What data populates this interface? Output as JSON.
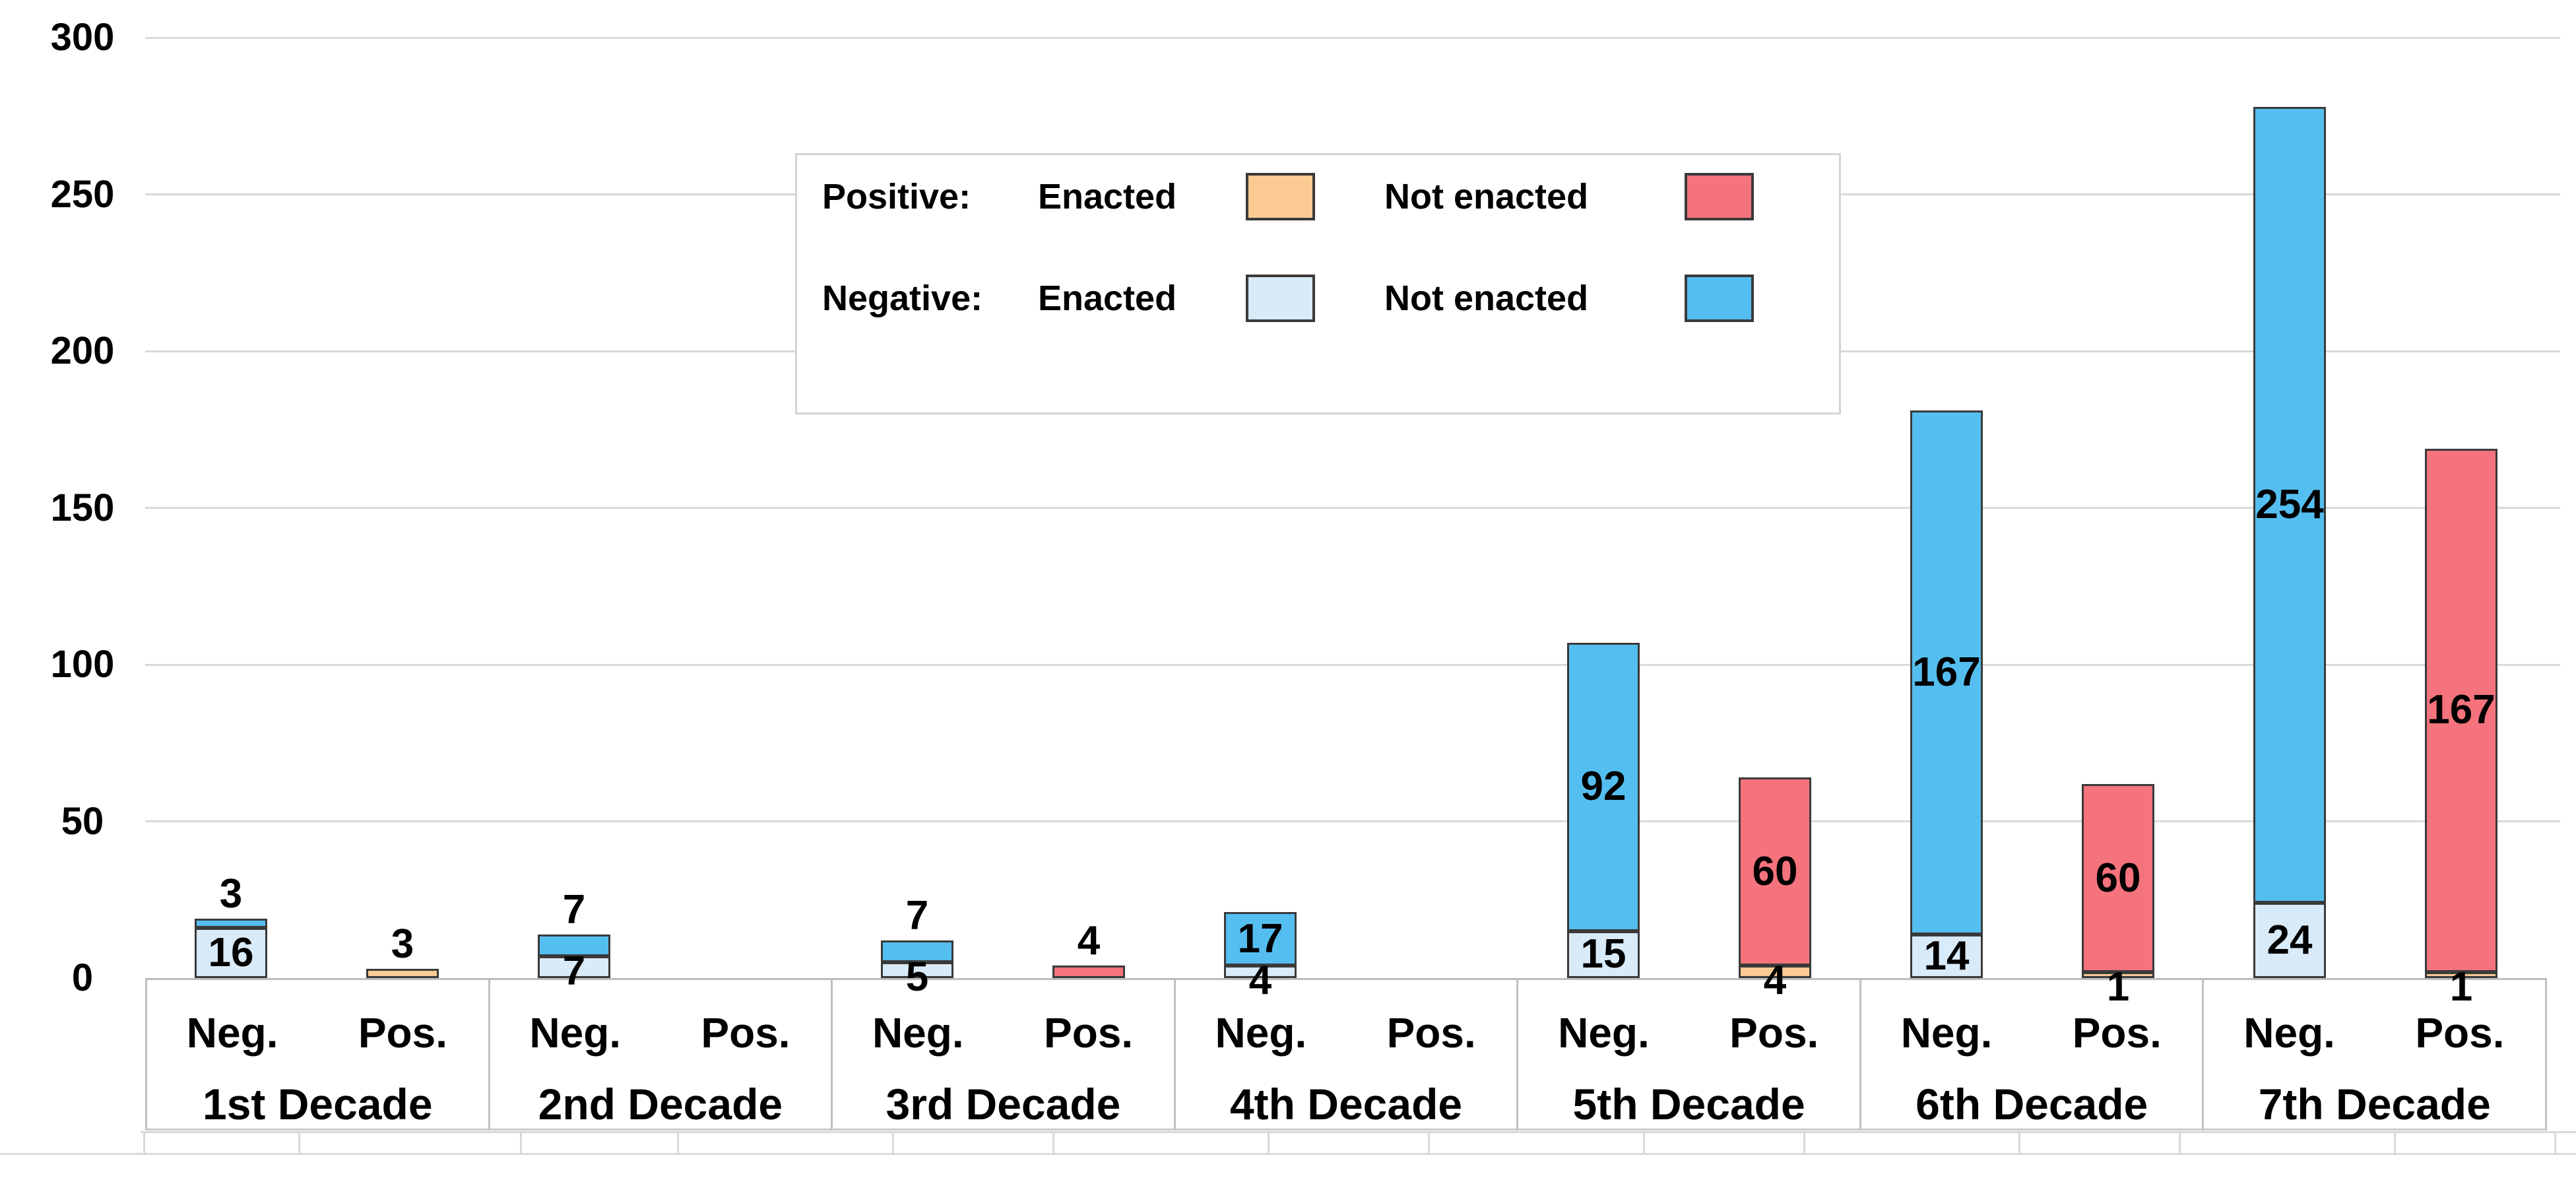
{
  "chart_data": {
    "type": "bar",
    "stacked": true,
    "title": "",
    "xlabel": "",
    "ylabel": "",
    "ylim": [
      0,
      300
    ],
    "yticks": [
      "0",
      "50",
      "100",
      "150",
      "200",
      "250",
      "300"
    ],
    "grid": "horizontal",
    "legend_position": "inside-top-center",
    "group_labels": [
      "Neg.",
      "Pos."
    ],
    "categories": [
      {
        "decade": "1st Decade",
        "neg": {
          "enacted": 16,
          "not_enacted": 3
        },
        "pos": {
          "enacted": 3,
          "not_enacted": 0
        }
      },
      {
        "decade": "2nd Decade",
        "neg": {
          "enacted": 7,
          "not_enacted": 7
        },
        "pos": {
          "enacted": 0,
          "not_enacted": 0
        }
      },
      {
        "decade": "3rd Decade",
        "neg": {
          "enacted": 5,
          "not_enacted": 7
        },
        "pos": {
          "enacted": 0,
          "not_enacted": 4
        }
      },
      {
        "decade": "4th Decade",
        "neg": {
          "enacted": 4,
          "not_enacted": 17
        },
        "pos": {
          "enacted": 0,
          "not_enacted": 0
        }
      },
      {
        "decade": "5th Decade",
        "neg": {
          "enacted": 15,
          "not_enacted": 92
        },
        "pos": {
          "enacted": 4,
          "not_enacted": 60
        }
      },
      {
        "decade": "6th Decade",
        "neg": {
          "enacted": 14,
          "not_enacted": 167
        },
        "pos": {
          "enacted": 1,
          "not_enacted": 60
        }
      },
      {
        "decade": "7th Decade",
        "neg": {
          "enacted": 24,
          "not_enacted": 254
        },
        "pos": {
          "enacted": 1,
          "not_enacted": 167
        }
      }
    ],
    "legend": {
      "rows": [
        {
          "prefix": "Positive:",
          "items": [
            {
              "label": "Enacted",
              "color": "#FBCB93",
              "series": "positive-enacted"
            },
            {
              "label": "Not enacted",
              "color": "#F4737C",
              "series": "positive-not-enacted"
            }
          ]
        },
        {
          "prefix": "Negative:",
          "items": [
            {
              "label": "Enacted",
              "color": "#D9EAF8",
              "series": "negative-enacted"
            },
            {
              "label": "Not enacted",
              "color": "#55BEF0",
              "series": "negative-not-enacted"
            }
          ]
        }
      ]
    },
    "colors": {
      "positive_enacted": "#FBCB93",
      "positive_not_enacted": "#F4737C",
      "negative_enacted": "#D9EAF8",
      "negative_not_enacted": "#55BEF0",
      "bar_border": "#3A3A3A",
      "gridline": "#D9D9D9",
      "axis_table_border": "#C0C0C0",
      "text": "#000000",
      "background": "#FFFFFF"
    }
  }
}
